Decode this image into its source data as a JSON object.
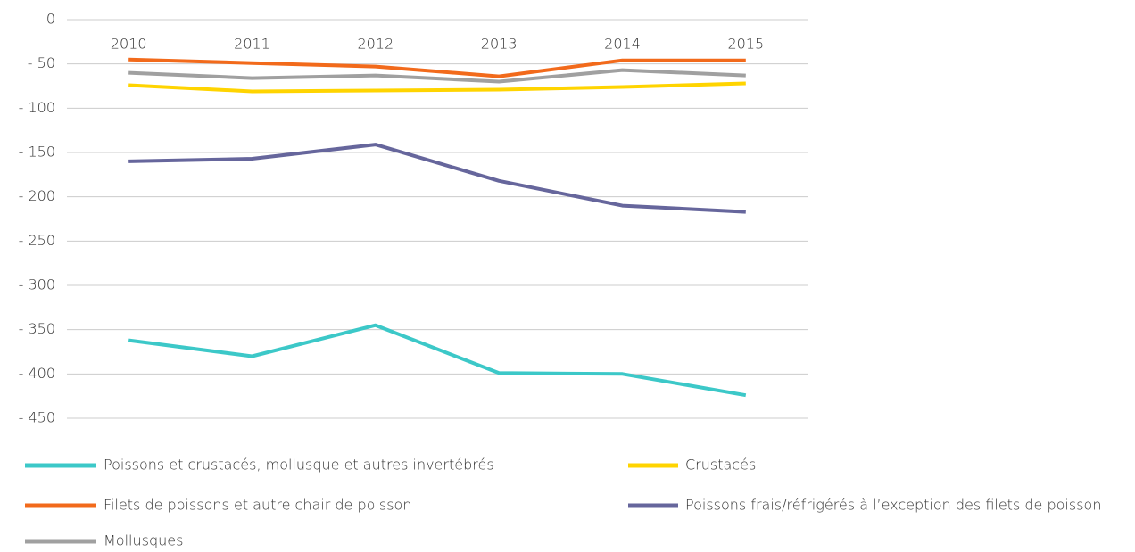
{
  "chart_data": {
    "type": "line",
    "categories": [
      "2010",
      "2011",
      "2012",
      "2013",
      "2014",
      "2015"
    ],
    "series": [
      {
        "name": "Poissons et crustacés, mollusque et autres invertébrés",
        "color": "#3cc8c8",
        "values": [
          -362,
          -380,
          -345,
          -399,
          -400,
          -424
        ]
      },
      {
        "name": "Crustacés",
        "color": "#ffd400",
        "values": [
          -74,
          -81,
          -80,
          -79,
          -76,
          -72
        ]
      },
      {
        "name": "Filets de poissons et autre chair de poisson",
        "color": "#f26a1b",
        "values": [
          -45,
          -49,
          -53,
          -64,
          -46,
          -46
        ]
      },
      {
        "name": "Poissons frais/réfrigérés à l’exception des filets de poisson",
        "color": "#66669c",
        "values": [
          -160,
          -157,
          -141,
          -182,
          -210,
          -217
        ]
      },
      {
        "name": "Mollusques",
        "color": "#a0a0a0",
        "values": [
          -60,
          -66,
          -63,
          -70,
          -57,
          -63
        ]
      }
    ],
    "ylim": [
      0,
      -450
    ],
    "yticks": [
      0,
      {
        "value": -50,
        "label": "- 50"
      },
      {
        "value": -100,
        "label": "- 100"
      },
      {
        "value": -150,
        "label": "- 150"
      },
      {
        "value": -200,
        "label": "- 200"
      },
      {
        "value": -250,
        "label": "- 250"
      },
      {
        "value": -300,
        "label": "- 300"
      },
      {
        "value": -350,
        "label": "- 350"
      },
      {
        "value": -400,
        "label": "- 400"
      },
      {
        "value": -450,
        "label": "- 450"
      }
    ],
    "grid": true
  }
}
